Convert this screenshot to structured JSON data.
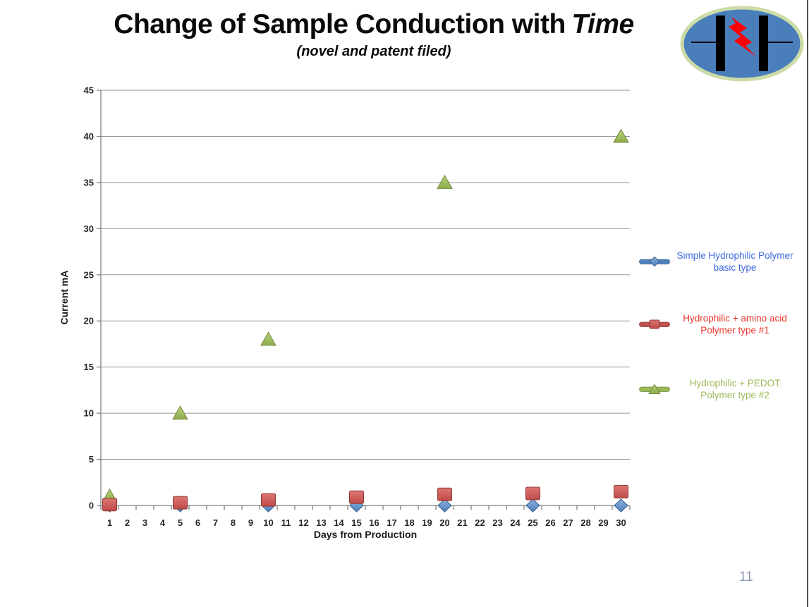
{
  "slide": {
    "title_main": "Change of Sample Conduction with",
    "title_emph": "Time",
    "subtitle": "(novel and patent filed)",
    "page_number": "11"
  },
  "logo": {
    "description": "capacitor-lightning-logo",
    "bg_color": "#4a7ebb",
    "ring_color": "#cbdca6",
    "plate_color": "#000000",
    "bolt_color": "#fb0007"
  },
  "chart_data": {
    "type": "scatter",
    "title": "Change of Sample Conduction with Time (novel and patent filed)",
    "xlabel": "Days from Production",
    "ylabel": "Current mA",
    "x_ticks": [
      1,
      2,
      3,
      4,
      5,
      6,
      7,
      8,
      9,
      10,
      11,
      12,
      13,
      14,
      15,
      16,
      17,
      18,
      19,
      20,
      21,
      22,
      23,
      24,
      25,
      26,
      27,
      28,
      29,
      30
    ],
    "y_ticks": [
      0,
      5,
      10,
      15,
      20,
      25,
      30,
      35,
      40,
      45
    ],
    "ylim": [
      0,
      45
    ],
    "grid": true,
    "legend_position": "right",
    "colors": {
      "gridline": "#979797",
      "axis": "#7f7f7f"
    },
    "series": [
      {
        "name": "Simple Hydrophilic Polymer basic type",
        "legend_lines": [
          "Simple Hydrophilic Polymer",
          "basic type"
        ],
        "marker": "diamond",
        "color": "#4f81bd",
        "border": "#38608f",
        "text_color": "#4169e1",
        "points": [
          [
            1,
            0
          ],
          [
            5,
            0
          ],
          [
            10,
            0
          ],
          [
            15,
            0
          ],
          [
            20,
            0
          ],
          [
            25,
            0
          ],
          [
            30,
            0
          ]
        ]
      },
      {
        "name": "Hydrophilic + amino acid Polymer type #1",
        "legend_lines": [
          "Hydrophilic + amino acid",
          "Polymer type #1"
        ],
        "marker": "square",
        "color": "#c0504d",
        "border": "#8f3a37",
        "text_color": "#ea352b",
        "points": [
          [
            1,
            0.1
          ],
          [
            5,
            0.3
          ],
          [
            10,
            0.6
          ],
          [
            15,
            0.9
          ],
          [
            20,
            1.2
          ],
          [
            25,
            1.3
          ],
          [
            30,
            1.5
          ]
        ]
      },
      {
        "name": "Hydrophilic  + PEDOT Polymer type #2",
        "legend_lines": [
          "Hydrophilic  + PEDOT",
          "Polymer type #2"
        ],
        "marker": "triangle",
        "color": "#9bbb59",
        "border": "#71893f",
        "text_color": "#9bbb59",
        "points": [
          [
            1,
            1
          ],
          [
            5,
            10
          ],
          [
            10,
            18
          ],
          [
            20,
            35
          ],
          [
            30,
            40
          ]
        ]
      }
    ]
  }
}
